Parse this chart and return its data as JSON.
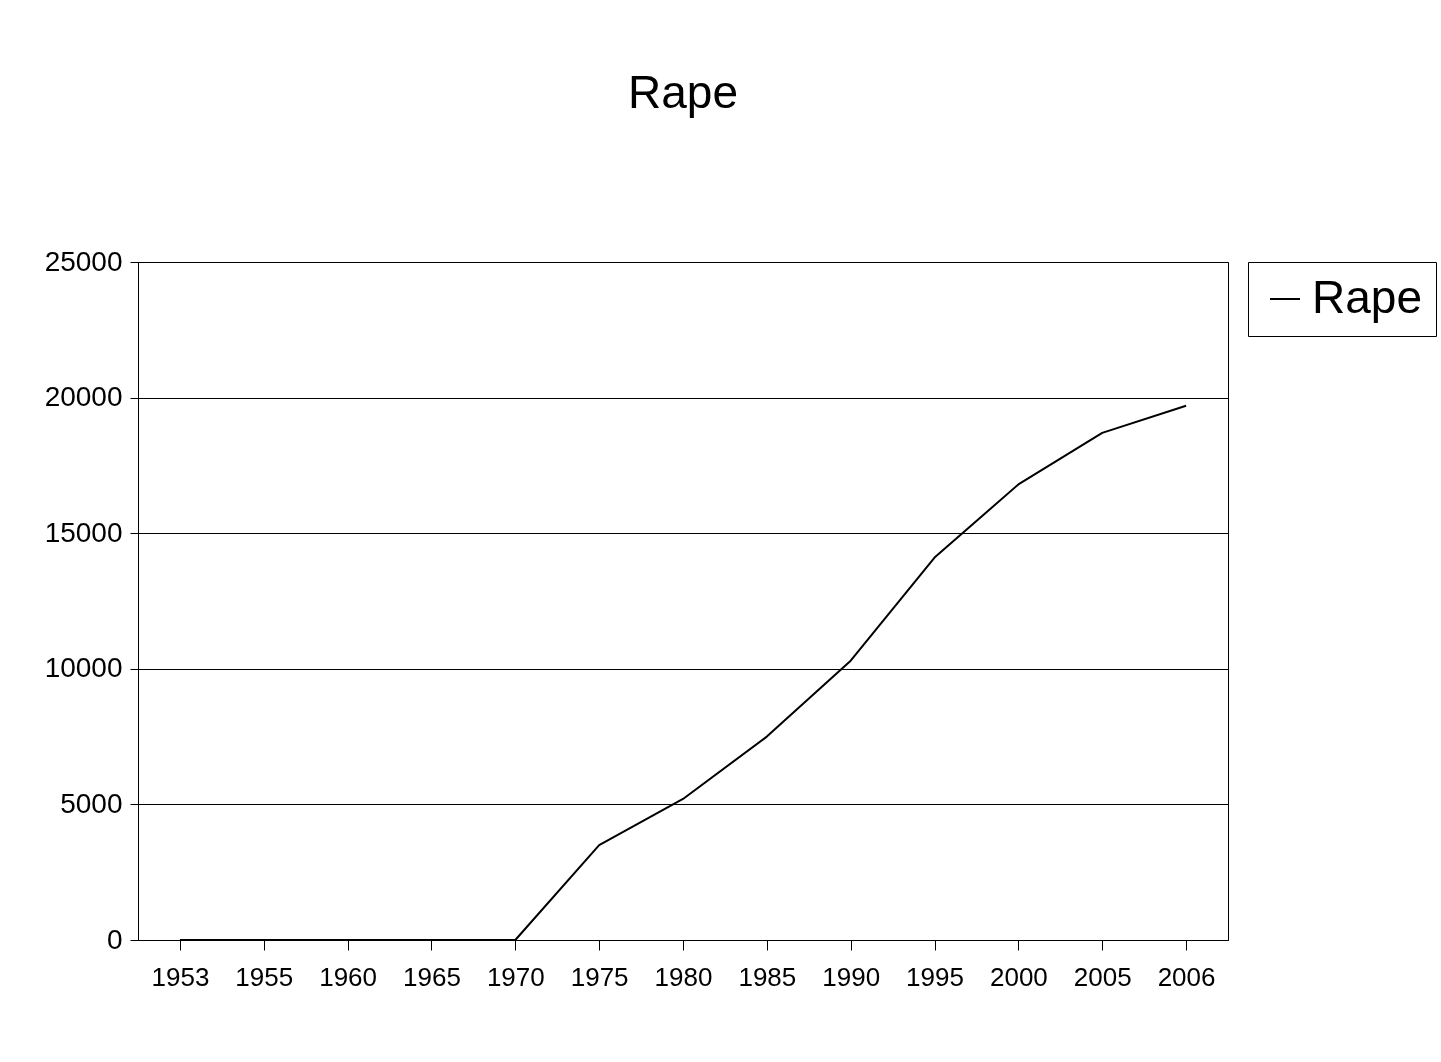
{
  "chart_data": {
    "type": "line",
    "title": "Rape",
    "categories": [
      "1953",
      "1955",
      "1960",
      "1965",
      "1970",
      "1975",
      "1980",
      "1985",
      "1990",
      "1995",
      "2000",
      "2005",
      "2006"
    ],
    "series": [
      {
        "name": "Rape",
        "color": "#000000",
        "values": [
          0,
          0,
          0,
          0,
          0,
          3500,
          5200,
          7500,
          10300,
          14100,
          16800,
          18700,
          19700
        ]
      }
    ],
    "ylim": [
      0,
      25000
    ],
    "yticks": [
      0,
      5000,
      10000,
      15000,
      20000,
      25000
    ],
    "grid": "y",
    "legend": "right",
    "marker": "none"
  }
}
